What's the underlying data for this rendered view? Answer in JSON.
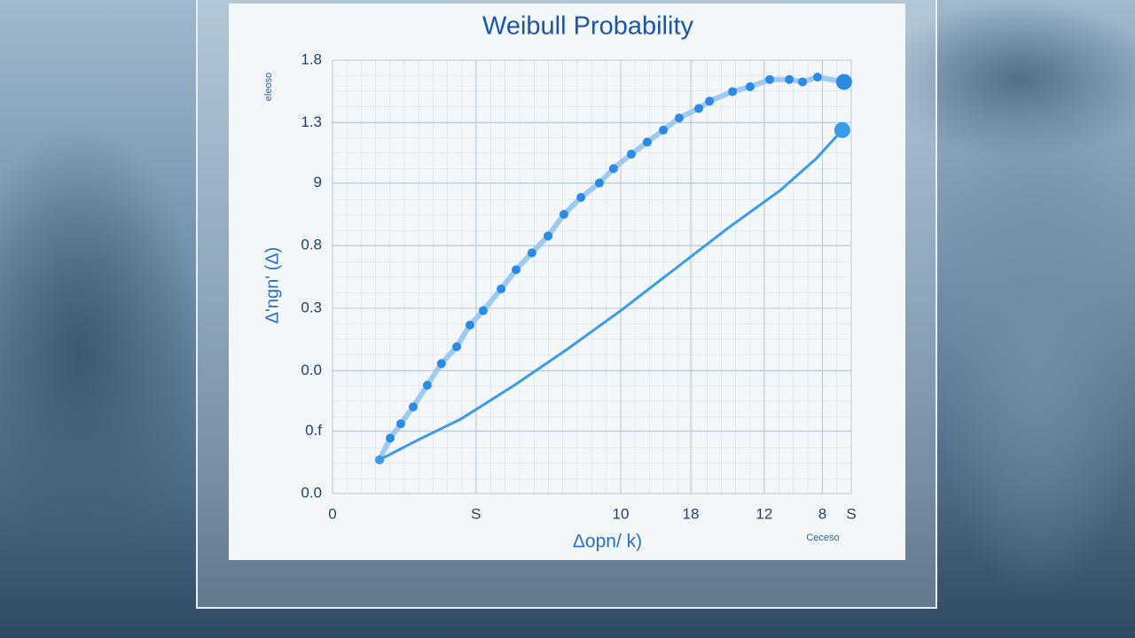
{
  "chart_data": {
    "type": "scatter",
    "title": "Weibull Probability",
    "ylabel": "Δ'ngn' (Δ)",
    "xlabel": "Δopn/ k)",
    "corner_note": "eleoso",
    "footer_note": "Ceceso",
    "xlim": [
      0,
      18
    ],
    "ylim": [
      0,
      1.8
    ],
    "xticks": [
      0,
      {
        "value": 4.98,
        "label": "S"
      },
      10,
      {
        "value": 12.43,
        "label": "18"
      },
      {
        "value": 14.98,
        "label": "12"
      },
      {
        "value": 17,
        "label": "8"
      },
      {
        "value": 18,
        "label": "S"
      }
    ],
    "yticks": [
      {
        "value": 0,
        "label": "0.0"
      },
      {
        "value": 0.26,
        "label": "0.f"
      },
      {
        "value": 0.51,
        "label": "0.0"
      },
      {
        "value": 0.77,
        "label": "0.3"
      },
      {
        "value": 1.03,
        "label": "0.8"
      },
      {
        "value": 1.29,
        "label": "9"
      },
      {
        "value": 1.54,
        "label": "1.3"
      },
      1.8
    ],
    "grid": true,
    "series": [
      {
        "color": "#2a8ae6",
        "x": [
          1.63,
          2.0,
          2.37,
          2.8,
          3.29,
          3.78,
          4.31,
          4.77,
          5.23,
          5.85,
          6.37,
          6.92,
          7.48,
          8.03,
          8.62,
          9.26,
          9.75,
          10.37,
          10.92,
          11.48,
          12.03,
          12.71,
          13.08,
          13.88,
          14.49,
          15.17,
          15.85,
          16.31,
          16.83,
          17.75
        ],
        "y": [
          0.14,
          0.23,
          0.29,
          0.36,
          0.45,
          0.54,
          0.61,
          0.7,
          0.76,
          0.85,
          0.93,
          1.0,
          1.07,
          1.16,
          1.23,
          1.29,
          1.35,
          1.41,
          1.46,
          1.51,
          1.56,
          1.6,
          1.63,
          1.67,
          1.69,
          1.72,
          1.72,
          1.71,
          1.73,
          1.71
        ]
      },
      {
        "color": "#3a9be8",
        "x": [
          1.63,
          2.92,
          4.46,
          6.31,
          8.15,
          10.0,
          11.85,
          13.69,
          15.54,
          16.77,
          17.69
        ],
        "y": [
          0.14,
          0.22,
          0.31,
          0.45,
          0.6,
          0.76,
          0.93,
          1.1,
          1.26,
          1.39,
          1.51
        ]
      }
    ]
  }
}
